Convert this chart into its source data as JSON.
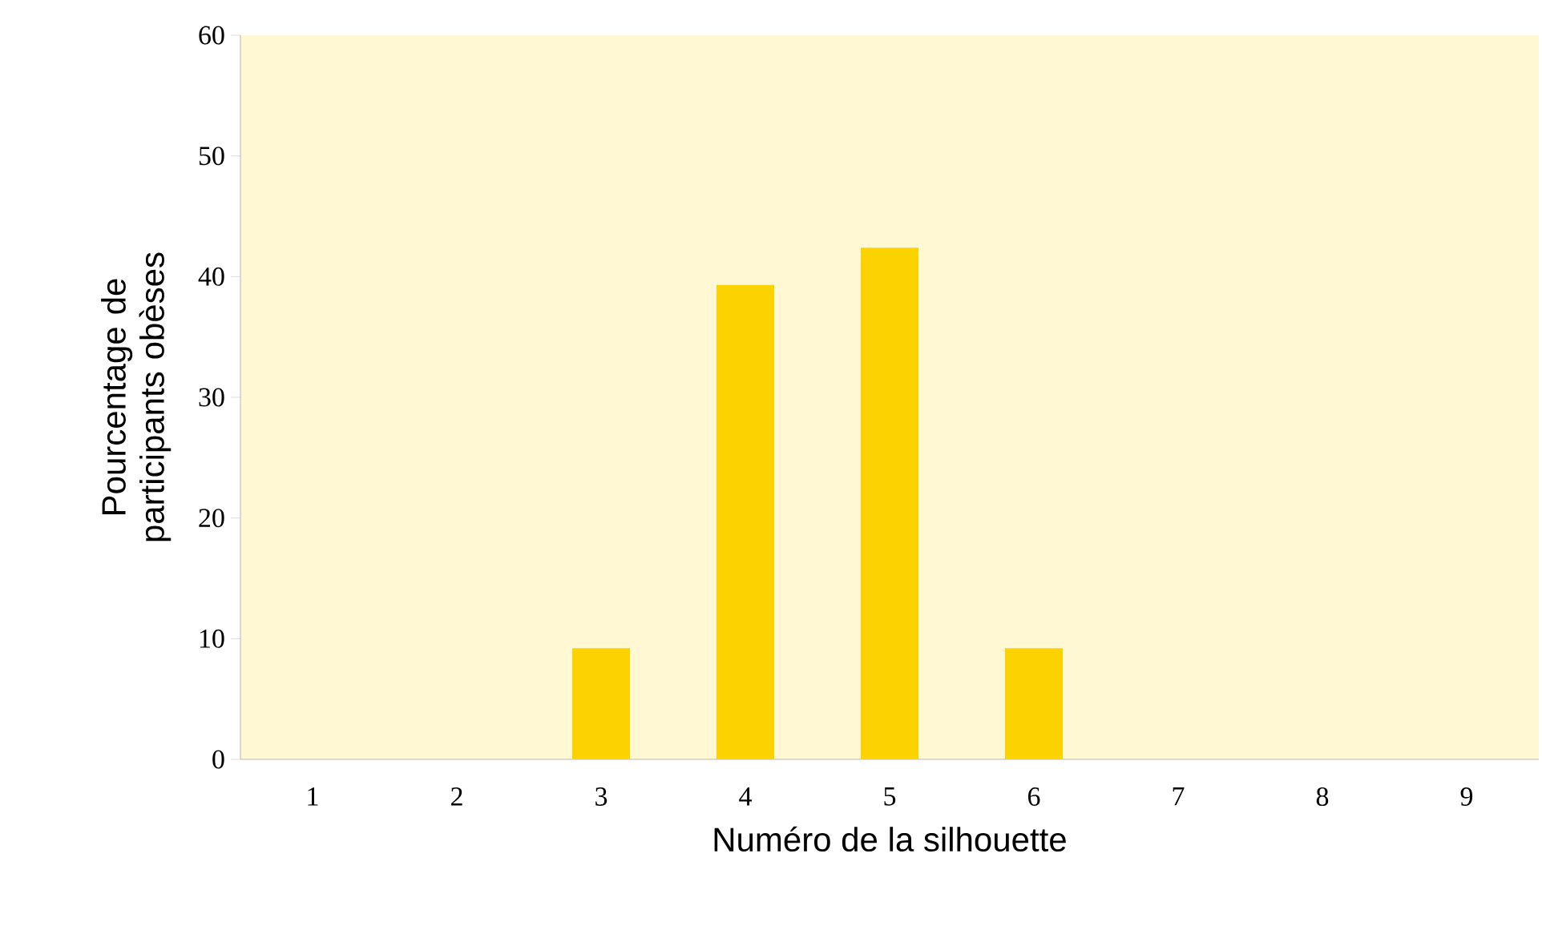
{
  "chart_data": {
    "type": "bar",
    "xlabel": "Numéro de la silhouette",
    "ylabel": "Pourcentage de participants obèses",
    "categories": [
      "1",
      "2",
      "3",
      "4",
      "5",
      "6",
      "7",
      "8",
      "9"
    ],
    "values": [
      0,
      0,
      9.2,
      39.3,
      42.4,
      9.2,
      0,
      0,
      0
    ],
    "color": "#fcd200",
    "ylim": [
      0,
      60
    ],
    "yticks": [
      0,
      10,
      20,
      30,
      40,
      50,
      60
    ],
    "grid": false
  }
}
